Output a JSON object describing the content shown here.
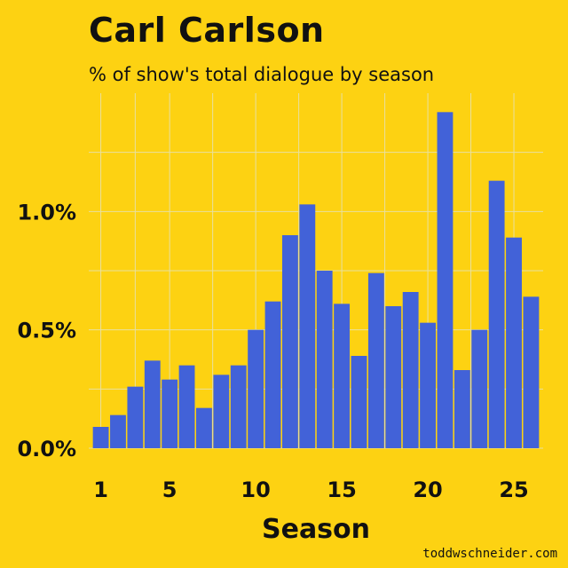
{
  "chart_data": {
    "type": "bar",
    "title": "Carl Carlson",
    "subtitle": "% of show's total dialogue by season",
    "xlabel": "Season",
    "ylabel": "",
    "x": [
      1,
      2,
      3,
      4,
      5,
      6,
      7,
      8,
      9,
      10,
      11,
      12,
      13,
      14,
      15,
      16,
      17,
      18,
      19,
      20,
      21,
      22,
      23,
      24,
      25,
      26
    ],
    "values": [
      0.09,
      0.14,
      0.26,
      0.37,
      0.29,
      0.35,
      0.17,
      0.31,
      0.35,
      0.5,
      0.62,
      0.9,
      1.03,
      0.75,
      0.61,
      0.39,
      0.74,
      0.6,
      0.66,
      0.53,
      1.42,
      0.33,
      0.5,
      1.13,
      0.89,
      0.64
    ],
    "unit": "%",
    "xticks": [
      "1",
      "5",
      "10",
      "15",
      "20",
      "25"
    ],
    "xtick_values": [
      1,
      5,
      10,
      15,
      20,
      25
    ],
    "yticks": [
      "0.0%",
      "0.5%",
      "1.0%"
    ],
    "ytick_values": [
      0.0,
      0.5,
      1.0
    ],
    "ylim": [
      0,
      1.5
    ],
    "xlim": [
      0.3,
      26.7
    ],
    "grid": true,
    "legend": "none",
    "colors": {
      "background": "#FDD212",
      "bar": "#4262D8",
      "grid": "#E8E0A0"
    }
  },
  "credit": "toddwschneider.com"
}
